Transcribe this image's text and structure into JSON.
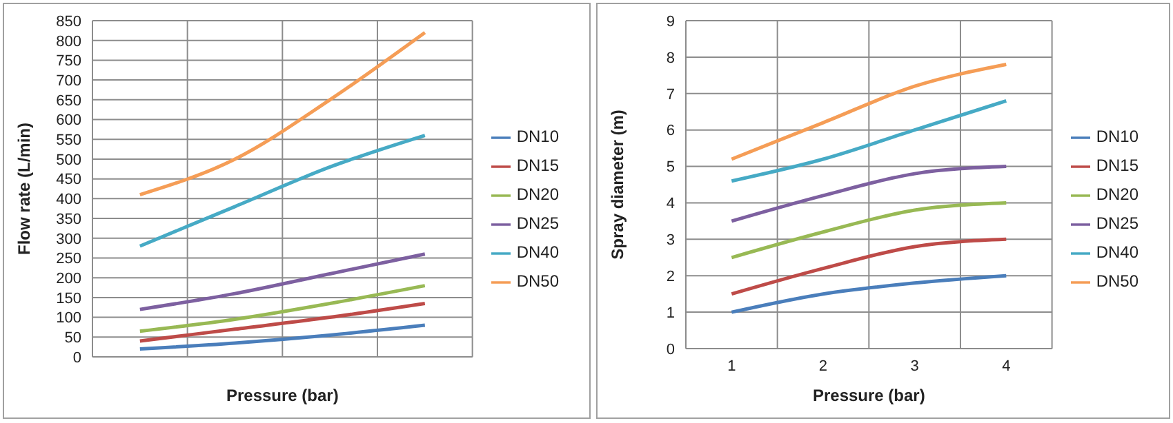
{
  "chart_data": [
    {
      "type": "line",
      "xlabel": "Pressure (bar)",
      "ylabel": "Flow rate (L/min)",
      "categories": [
        null,
        null,
        null,
        null
      ],
      "series": [
        {
          "name": "DN10",
          "color": "#4a7ebb",
          "values": [
            20,
            35,
            55,
            80
          ]
        },
        {
          "name": "DN15",
          "color": "#be4b48",
          "values": [
            40,
            70,
            100,
            135
          ]
        },
        {
          "name": "DN20",
          "color": "#98b954",
          "values": [
            65,
            95,
            135,
            180
          ]
        },
        {
          "name": "DN25",
          "color": "#7d60a0",
          "values": [
            120,
            160,
            210,
            260
          ]
        },
        {
          "name": "DN40",
          "color": "#46aac5",
          "values": [
            280,
            380,
            480,
            560
          ]
        },
        {
          "name": "DN50",
          "color": "#f59d56",
          "values": [
            410,
            500,
            650,
            820
          ]
        }
      ],
      "ylim": [
        0,
        850
      ],
      "yticks": [
        0,
        50,
        100,
        150,
        200,
        250,
        300,
        350,
        400,
        450,
        500,
        550,
        600,
        650,
        700,
        750,
        800,
        850
      ],
      "grid": true,
      "legend": "right",
      "marker": "none",
      "tick_labels": "y"
    },
    {
      "type": "line",
      "xlabel": "Pressure (bar)",
      "ylabel": "Spray diameter (m)",
      "categories": [
        "1",
        "2",
        "3",
        "4"
      ],
      "series": [
        {
          "name": "DN10",
          "color": "#4a7ebb",
          "values": [
            1,
            1.5,
            1.8,
            2
          ]
        },
        {
          "name": "DN15",
          "color": "#be4b48",
          "values": [
            1.5,
            2.2,
            2.8,
            3
          ]
        },
        {
          "name": "DN20",
          "color": "#98b954",
          "values": [
            2.5,
            3.2,
            3.8,
            4
          ]
        },
        {
          "name": "DN25",
          "color": "#7d60a0",
          "values": [
            3.5,
            4.2,
            4.8,
            5
          ]
        },
        {
          "name": "DN40",
          "color": "#46aac5",
          "values": [
            4.6,
            5.2,
            6,
            6.8
          ]
        },
        {
          "name": "DN50",
          "color": "#f59d56",
          "values": [
            5.2,
            6.2,
            7.2,
            7.8
          ]
        }
      ],
      "ylim": [
        0,
        9
      ],
      "yticks": [
        0,
        1,
        2,
        3,
        4,
        5,
        6,
        7,
        8,
        9
      ],
      "grid": true,
      "legend": "right",
      "marker": "none"
    }
  ]
}
